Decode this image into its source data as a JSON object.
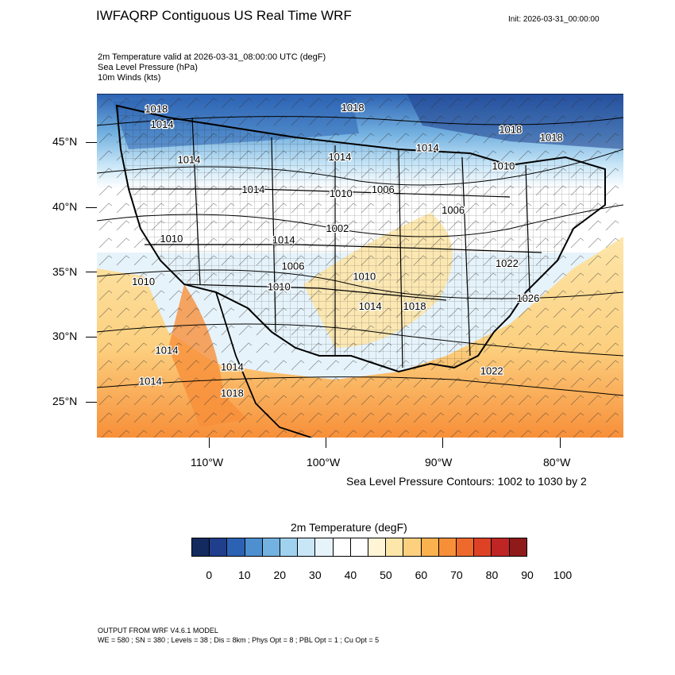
{
  "title": "IWFAQRP Contiguous US Real Time WRF",
  "init": "Init: 2026-03-31_00:00:00",
  "fields": [
    "2m Temperature valid at 2026-03-31_08:00:00 UTC   (degF)",
    "Sea Level Pressure   (hPa)",
    "10m Winds   (kts)"
  ],
  "map": {
    "lat_labels": [
      "45°N",
      "40°N",
      "35°N",
      "30°N",
      "25°N"
    ],
    "lon_labels": [
      "110°W",
      "100°W",
      "90°W",
      "80°W"
    ],
    "isobar_labels": [
      {
        "text": "1018",
        "lon": -114.5,
        "lat": 47.5
      },
      {
        "text": "1014",
        "lon": -114.0,
        "lat": 46.3
      },
      {
        "text": "1018",
        "lon": -97.7,
        "lat": 47.6
      },
      {
        "text": "1018",
        "lon": -84.2,
        "lat": 45.9
      },
      {
        "text": "1018",
        "lon": -80.7,
        "lat": 45.3
      },
      {
        "text": "1014",
        "lon": -111.7,
        "lat": 43.6
      },
      {
        "text": "1014",
        "lon": -98.8,
        "lat": 43.8
      },
      {
        "text": "1014",
        "lon": -91.3,
        "lat": 44.5
      },
      {
        "text": "1010",
        "lon": -84.8,
        "lat": 43.1
      },
      {
        "text": "1014",
        "lon": -106.2,
        "lat": 41.3
      },
      {
        "text": "1010",
        "lon": -98.7,
        "lat": 41.0
      },
      {
        "text": "1006",
        "lon": -95.1,
        "lat": 41.3
      },
      {
        "text": "1006",
        "lon": -89.1,
        "lat": 39.7
      },
      {
        "text": "1002",
        "lon": -99.0,
        "lat": 38.3
      },
      {
        "text": "1014",
        "lon": -103.6,
        "lat": 37.4
      },
      {
        "text": "1010",
        "lon": -113.2,
        "lat": 37.5
      },
      {
        "text": "1006",
        "lon": -102.8,
        "lat": 35.4
      },
      {
        "text": "1010",
        "lon": -96.7,
        "lat": 34.6
      },
      {
        "text": "1022",
        "lon": -84.5,
        "lat": 35.6
      },
      {
        "text": "1010",
        "lon": -115.6,
        "lat": 34.2
      },
      {
        "text": "1010",
        "lon": -104.0,
        "lat": 33.8
      },
      {
        "text": "1026",
        "lon": -82.7,
        "lat": 32.9
      },
      {
        "text": "1014",
        "lon": -96.2,
        "lat": 32.3
      },
      {
        "text": "1018",
        "lon": -92.4,
        "lat": 32.3
      },
      {
        "text": "1014",
        "lon": -113.6,
        "lat": 28.9
      },
      {
        "text": "1014",
        "lon": -108.0,
        "lat": 27.6
      },
      {
        "text": "1022",
        "lon": -85.8,
        "lat": 27.3
      },
      {
        "text": "1014",
        "lon": -115.0,
        "lat": 26.5
      },
      {
        "text": "1018",
        "lon": -108.0,
        "lat": 25.6
      }
    ]
  },
  "contour_note": "Sea Level Pressure Contours: 1002 to 1030 by 2",
  "colorbar": {
    "title": "2m Temperature  (degF)",
    "colors": [
      "#132a5e",
      "#1f3f8c",
      "#2c62b3",
      "#4e8fcf",
      "#73b1e0",
      "#a0d2f0",
      "#c9e6f7",
      "#e6f3fb",
      "#ffffff",
      "#ffffff",
      "#fff4d6",
      "#fde6aa",
      "#fcd07f",
      "#fbb14e",
      "#f78f39",
      "#ee6a2c",
      "#dd4226",
      "#c02525",
      "#8f1a1a"
    ],
    "labels": [
      "0",
      "10",
      "20",
      "30",
      "40",
      "50",
      "60",
      "70",
      "80",
      "90",
      "100"
    ]
  },
  "footer": [
    "OUTPUT FROM WRF V4.6.1 MODEL",
    "WE = 580 ; SN = 380 ; Levels = 38 ; Dis = 8km ; Phys Opt = 8 ; PBL Opt = 1 ; Cu Opt = 5"
  ]
}
